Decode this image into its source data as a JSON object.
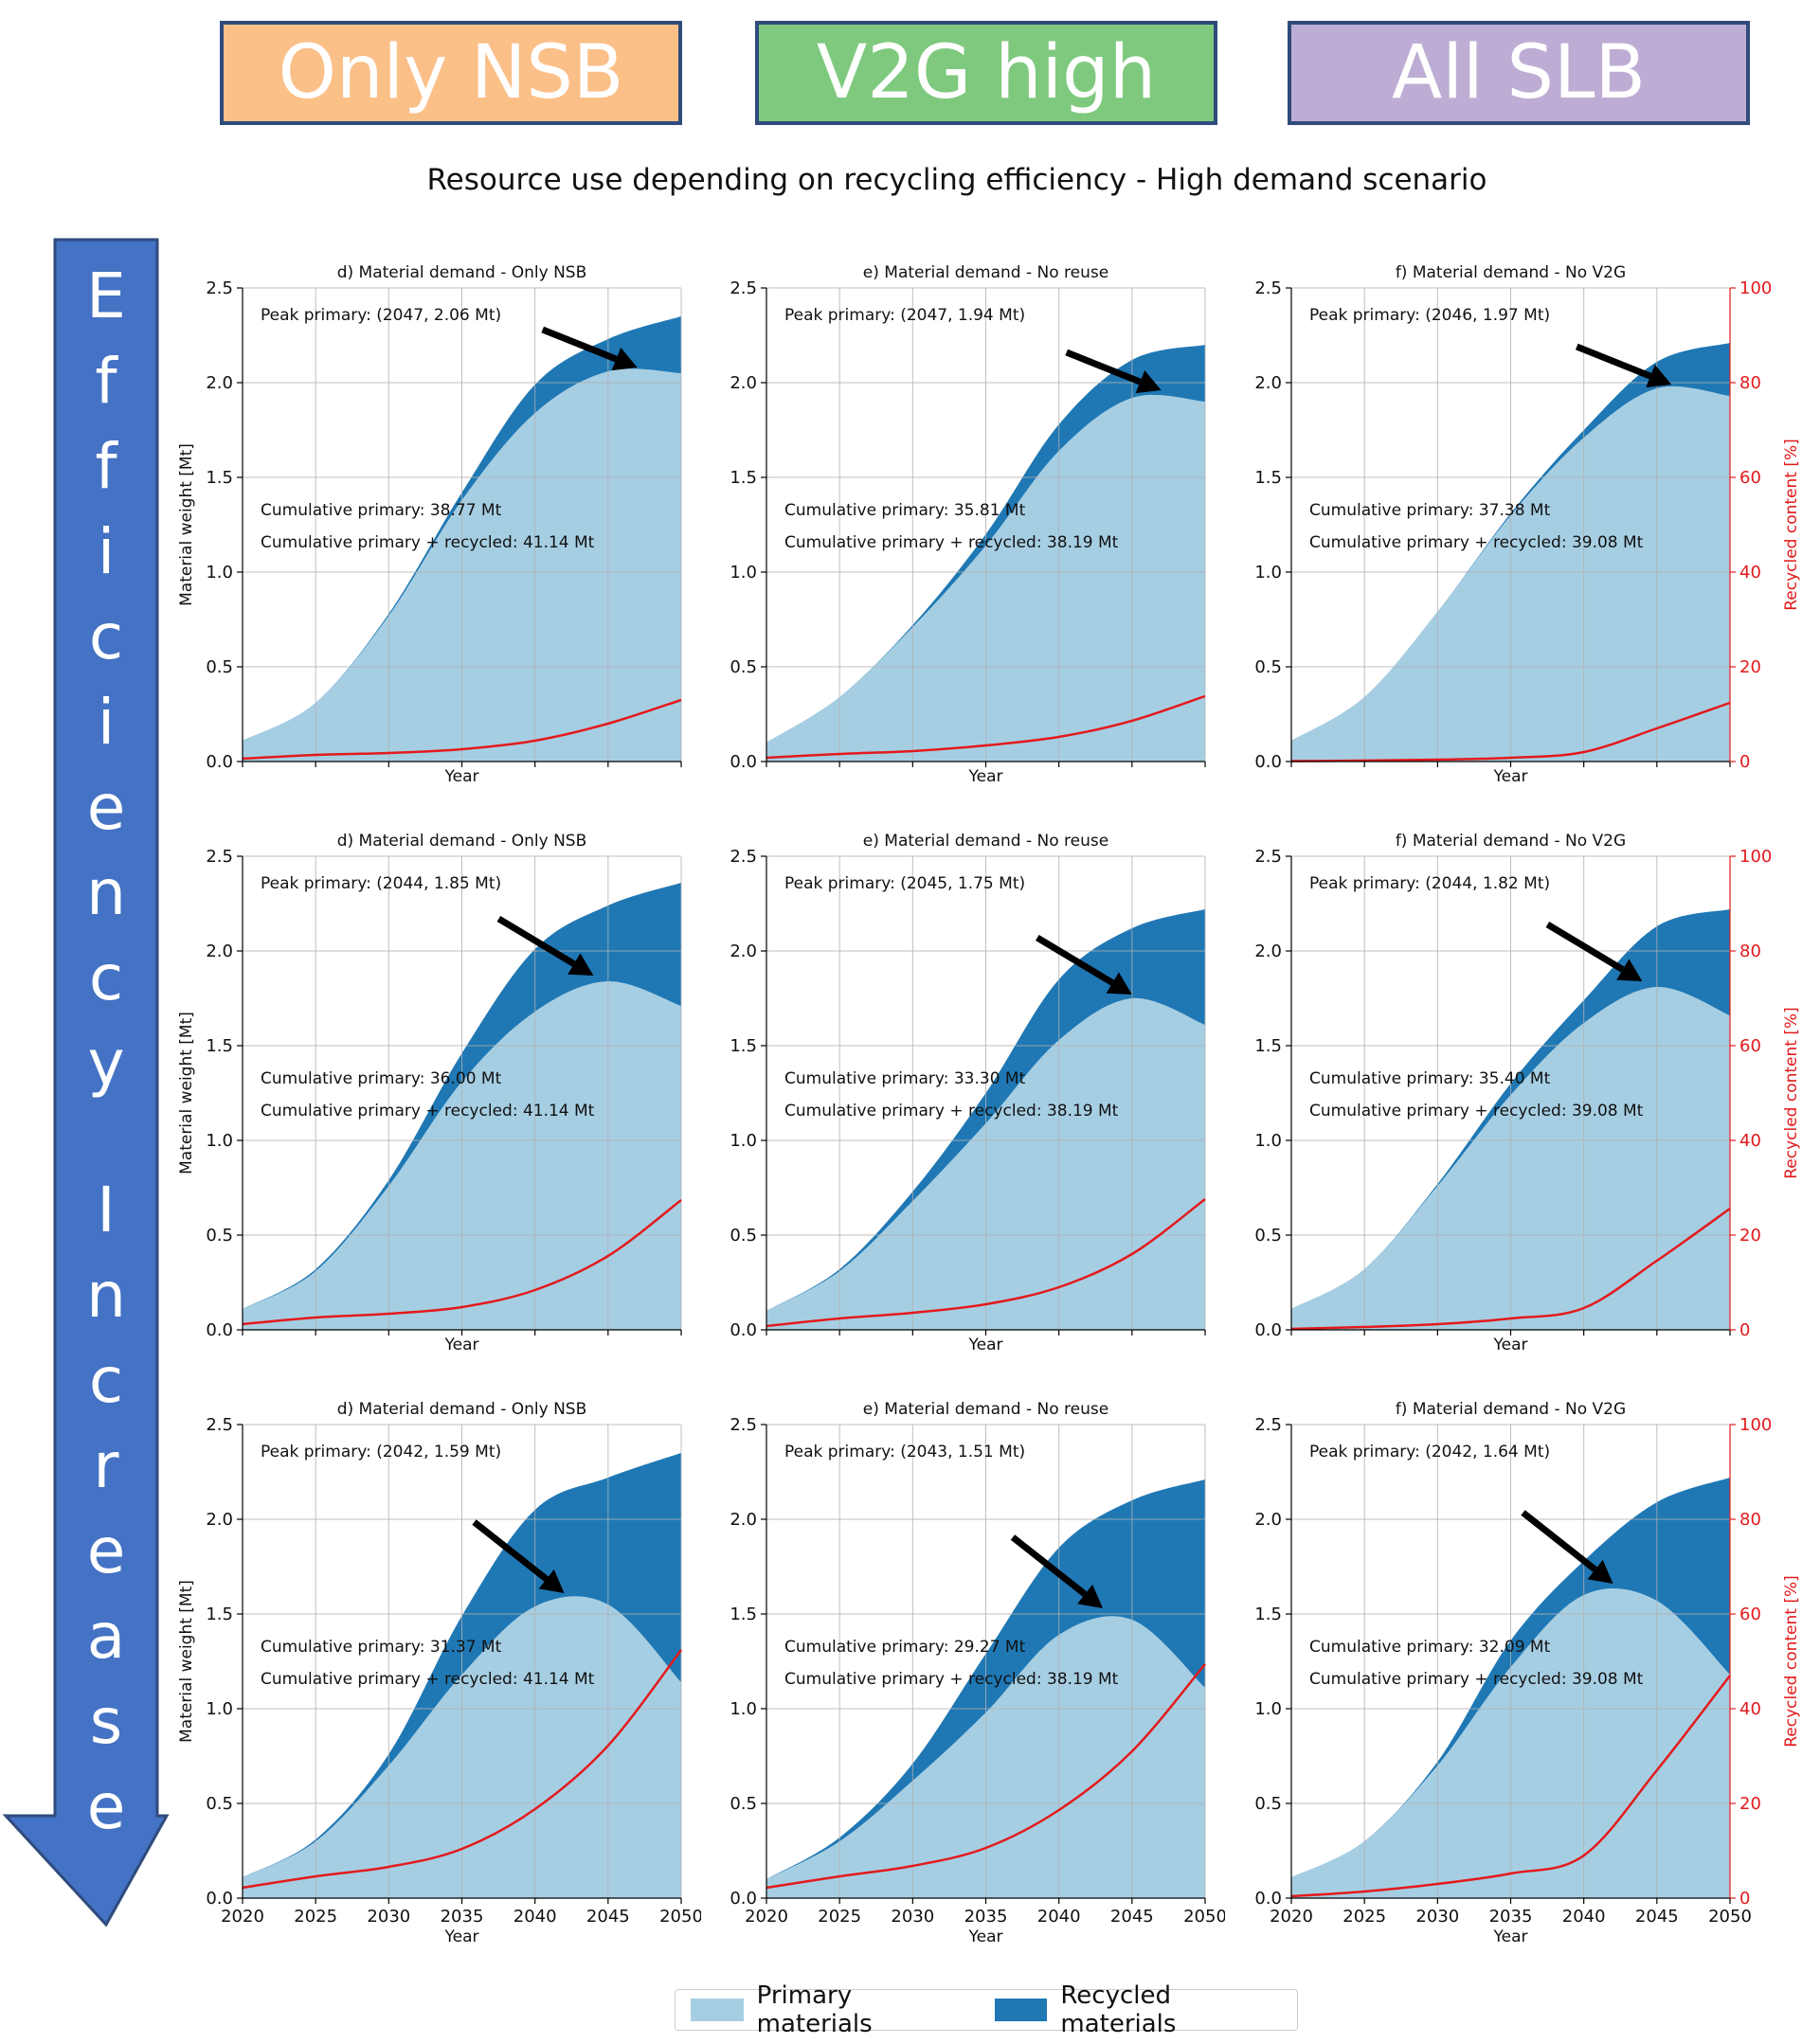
{
  "scenarios": [
    {
      "label": "Only NSB",
      "color": "#fbbf88"
    },
    {
      "label": "V2G high",
      "color": "#7fc97f"
    },
    {
      "label": "All SLB",
      "color": "#bdadd4"
    }
  ],
  "main_title": "Resource use depending on recycling efficiency - High demand scenario",
  "side_arrow": {
    "text": "Efficiency Increase",
    "color": "#4472c4"
  },
  "legend": [
    {
      "label": "Primary materials",
      "color": "#a6cee3"
    },
    {
      "label": "Recycled materials",
      "color": "#1f78b4"
    }
  ],
  "axes": {
    "xlabel": "Year",
    "ylabel": "Material weight [Mt]",
    "ylabel2": "Recycled content [%]",
    "xlim": [
      2020,
      2050
    ],
    "ylim": [
      0,
      2.5
    ],
    "y2lim": [
      0,
      100
    ],
    "xticks": [
      "2020",
      "2025",
      "2030",
      "2035",
      "2040",
      "2045",
      "2050"
    ],
    "yticks": [
      "0.0",
      "0.5",
      "1.0",
      "1.5",
      "2.0",
      "2.5"
    ],
    "y2ticks": [
      "0",
      "20",
      "40",
      "60",
      "80",
      "100"
    ],
    "recycled_line_color": "#e31a1c"
  },
  "chart_data": [
    {
      "type": "area",
      "title": "d) Material demand - Only NSB",
      "x": [
        2020,
        2025,
        2030,
        2035,
        2040,
        2045,
        2050
      ],
      "series": [
        {
          "name": "Primary materials",
          "values": [
            0.11,
            0.31,
            0.77,
            1.38,
            1.84,
            2.06,
            2.05
          ]
        },
        {
          "name": "Recycled materials",
          "values": [
            0.0,
            0.0,
            0.01,
            0.04,
            0.15,
            0.17,
            0.3
          ]
        },
        {
          "name": "Recycled content [%]",
          "axis": "right",
          "values": [
            0.6,
            1.4,
            1.8,
            2.6,
            4.4,
            8.0,
            13.0
          ]
        }
      ],
      "annotations": [
        "Peak primary: (2047, 2.06 Mt)",
        "Cumulative primary: 38.77 Mt",
        "Cumulative primary + recycled: 41.14 Mt"
      ]
    },
    {
      "type": "area",
      "title": "e) Material demand - No reuse",
      "x": [
        2020,
        2025,
        2030,
        2035,
        2040,
        2045,
        2050
      ],
      "series": [
        {
          "name": "Primary materials",
          "values": [
            0.1,
            0.34,
            0.71,
            1.14,
            1.64,
            1.92,
            1.9
          ]
        },
        {
          "name": "Recycled materials",
          "values": [
            0.0,
            0.0,
            0.01,
            0.06,
            0.14,
            0.2,
            0.3
          ]
        },
        {
          "name": "Recycled content [%]",
          "axis": "right",
          "values": [
            0.8,
            1.6,
            2.2,
            3.4,
            5.2,
            8.6,
            13.8
          ]
        }
      ],
      "annotations": [
        "Peak primary: (2047, 1.94 Mt)",
        "Cumulative primary: 35.81 Mt",
        "Cumulative primary + recycled: 38.19 Mt"
      ]
    },
    {
      "type": "area",
      "title": "f) Material demand - No V2G",
      "x": [
        2020,
        2025,
        2030,
        2035,
        2040,
        2045,
        2050
      ],
      "series": [
        {
          "name": "Primary materials",
          "values": [
            0.11,
            0.34,
            0.79,
            1.3,
            1.71,
            1.97,
            1.93
          ]
        },
        {
          "name": "Recycled materials",
          "values": [
            0.0,
            0.0,
            0.0,
            0.01,
            0.04,
            0.14,
            0.28
          ]
        },
        {
          "name": "Recycled content [%]",
          "axis": "right",
          "values": [
            0.1,
            0.2,
            0.4,
            0.8,
            2.0,
            7.0,
            12.4
          ]
        }
      ],
      "annotations": [
        "Peak primary: (2046, 1.97 Mt)",
        "Cumulative primary: 37.38 Mt",
        "Cumulative primary + recycled: 39.08 Mt"
      ]
    },
    {
      "type": "area",
      "title": "d) Material demand - Only NSB",
      "x": [
        2020,
        2025,
        2030,
        2035,
        2040,
        2045,
        2050
      ],
      "series": [
        {
          "name": "Primary materials",
          "values": [
            0.11,
            0.31,
            0.76,
            1.31,
            1.68,
            1.84,
            1.71
          ]
        },
        {
          "name": "Recycled materials",
          "values": [
            0.0,
            0.01,
            0.03,
            0.15,
            0.33,
            0.4,
            0.65
          ]
        },
        {
          "name": "Recycled content [%]",
          "axis": "right",
          "values": [
            1.2,
            2.6,
            3.4,
            4.8,
            8.4,
            15.6,
            27.4
          ]
        }
      ],
      "annotations": [
        "Peak primary: (2044, 1.85 Mt)",
        "Cumulative primary: 36.00 Mt",
        "Cumulative primary + recycled: 41.14 Mt"
      ]
    },
    {
      "type": "area",
      "title": "e) Material demand - No reuse",
      "x": [
        2020,
        2025,
        2030,
        2035,
        2040,
        2045,
        2050
      ],
      "series": [
        {
          "name": "Primary materials",
          "values": [
            0.1,
            0.31,
            0.68,
            1.09,
            1.53,
            1.75,
            1.61
          ]
        },
        {
          "name": "Recycled materials",
          "values": [
            0.0,
            0.01,
            0.05,
            0.16,
            0.32,
            0.37,
            0.61
          ]
        },
        {
          "name": "Recycled content [%]",
          "axis": "right",
          "values": [
            0.8,
            2.4,
            3.6,
            5.4,
            9.0,
            16.0,
            27.6
          ]
        }
      ],
      "annotations": [
        "Peak primary: (2045, 1.75 Mt)",
        "Cumulative primary: 33.30 Mt",
        "Cumulative primary + recycled: 38.19 Mt"
      ]
    },
    {
      "type": "area",
      "title": "f) Material demand - No V2G",
      "x": [
        2020,
        2025,
        2030,
        2035,
        2040,
        2045,
        2050
      ],
      "series": [
        {
          "name": "Primary materials",
          "values": [
            0.11,
            0.32,
            0.76,
            1.24,
            1.62,
            1.81,
            1.66
          ]
        },
        {
          "name": "Recycled materials",
          "values": [
            0.0,
            0.0,
            0.01,
            0.06,
            0.12,
            0.32,
            0.56
          ]
        },
        {
          "name": "Recycled content [%]",
          "axis": "right",
          "values": [
            0.2,
            0.6,
            1.2,
            2.4,
            4.6,
            14.6,
            25.6
          ]
        }
      ],
      "annotations": [
        "Peak primary: (2044, 1.82 Mt)",
        "Cumulative primary: 35.40 Mt",
        "Cumulative primary + recycled: 39.08 Mt"
      ]
    },
    {
      "type": "area",
      "title": "d) Material demand - Only NSB",
      "x": [
        2020,
        2025,
        2030,
        2035,
        2040,
        2045,
        2050
      ],
      "series": [
        {
          "name": "Primary materials",
          "values": [
            0.11,
            0.3,
            0.7,
            1.18,
            1.54,
            1.55,
            1.14
          ]
        },
        {
          "name": "Recycled materials",
          "values": [
            0.0,
            0.01,
            0.06,
            0.31,
            0.51,
            0.67,
            1.21
          ]
        },
        {
          "name": "Recycled content [%]",
          "axis": "right",
          "values": [
            2.2,
            4.6,
            6.6,
            10.4,
            18.8,
            32.2,
            52.4
          ]
        }
      ],
      "annotations": [
        "Peak primary: (2042, 1.59 Mt)",
        "Cumulative primary: 31.37 Mt",
        "Cumulative primary + recycled: 41.14 Mt"
      ]
    },
    {
      "type": "area",
      "title": "e) Material demand - No reuse",
      "x": [
        2020,
        2025,
        2030,
        2035,
        2040,
        2045,
        2050
      ],
      "series": [
        {
          "name": "Primary materials",
          "values": [
            0.1,
            0.3,
            0.62,
            0.98,
            1.39,
            1.47,
            1.11
          ]
        },
        {
          "name": "Recycled materials",
          "values": [
            0.0,
            0.02,
            0.09,
            0.31,
            0.46,
            0.63,
            1.1
          ]
        },
        {
          "name": "Recycled content [%]",
          "axis": "right",
          "values": [
            2.2,
            4.6,
            6.8,
            10.6,
            18.6,
            31.0,
            49.4
          ]
        }
      ],
      "annotations": [
        "Peak primary: (2043, 1.51 Mt)",
        "Cumulative primary: 29.27 Mt",
        "Cumulative primary + recycled: 38.19 Mt"
      ]
    },
    {
      "type": "area",
      "title": "f) Material demand - No V2G",
      "x": [
        2020,
        2025,
        2030,
        2035,
        2040,
        2045,
        2050
      ],
      "series": [
        {
          "name": "Primary materials",
          "values": [
            0.11,
            0.3,
            0.7,
            1.22,
            1.6,
            1.57,
            1.18
          ]
        },
        {
          "name": "Recycled materials",
          "values": [
            0.0,
            0.0,
            0.02,
            0.14,
            0.18,
            0.52,
            1.04
          ]
        },
        {
          "name": "Recycled content [%]",
          "axis": "right",
          "values": [
            0.4,
            1.4,
            3.0,
            5.2,
            9.0,
            27.0,
            47.0
          ]
        }
      ],
      "annotations": [
        "Peak primary: (2042, 1.64 Mt)",
        "Cumulative primary: 32.09 Mt",
        "Cumulative primary + recycled: 39.08 Mt"
      ]
    }
  ]
}
